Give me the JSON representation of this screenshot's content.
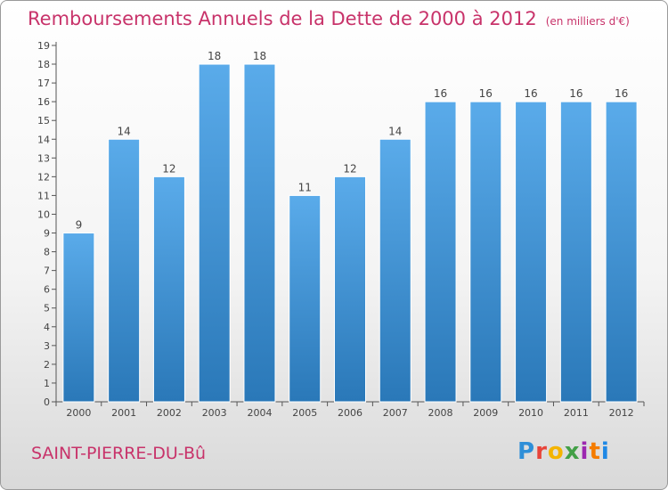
{
  "header": {
    "title": "Remboursements Annuels de la Dette de 2000 à 2012",
    "unit": "(en milliers d'€)"
  },
  "footer": {
    "commune": "SAINT-PIERRE-DU-Bû",
    "logo_text": "Proxiti",
    "logo_colors": [
      "#2f8fd8",
      "#e8443a",
      "#f4b400",
      "#43a047",
      "#9c27b0",
      "#f57c00",
      "#1e88e5"
    ]
  },
  "colors": {
    "title": "#c8336a",
    "bar_top": "#5aabea",
    "bar_bottom": "#2a78b8",
    "axis": "#555555",
    "label": "#444444"
  },
  "chart_data": {
    "type": "bar",
    "categories": [
      "2000",
      "2001",
      "2002",
      "2003",
      "2004",
      "2005",
      "2006",
      "2007",
      "2008",
      "2009",
      "2010",
      "2011",
      "2012"
    ],
    "values": [
      9,
      14,
      12,
      18,
      18,
      11,
      12,
      14,
      16,
      16,
      16,
      16,
      16
    ],
    "ylim": [
      0,
      19
    ],
    "yticks": [
      0,
      1,
      2,
      3,
      4,
      5,
      6,
      7,
      8,
      9,
      10,
      11,
      12,
      13,
      14,
      15,
      16,
      17,
      18,
      19
    ],
    "grid": false,
    "legend": "none"
  }
}
